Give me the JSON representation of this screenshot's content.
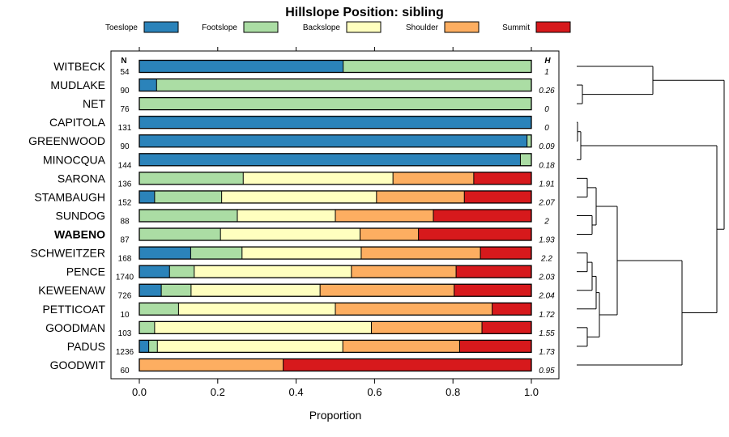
{
  "chart_data": {
    "type": "bar",
    "orientation": "horizontal-stacked",
    "title": "Hillslope Position: sibling",
    "xlabel": "Proportion",
    "ylabel": "",
    "xlim": [
      0,
      1
    ],
    "xticks": [
      "0.0",
      "0.2",
      "0.4",
      "0.6",
      "0.8",
      "1.0"
    ],
    "xtick_values": [
      0,
      0.2,
      0.4,
      0.6,
      0.8,
      1.0
    ],
    "n_header": "N",
    "h_header": "H",
    "legend_position": "top",
    "colors": {
      "Toeslope": "#2b83ba",
      "Footslope": "#abdda4",
      "Backslope": "#ffffbf",
      "Shoulder": "#fdae61",
      "Summit": "#d7191c"
    },
    "series_names": [
      "Toeslope",
      "Footslope",
      "Backslope",
      "Shoulder",
      "Summit"
    ],
    "categories": [
      {
        "name": "WITBECK",
        "n": "54",
        "h": "1",
        "bold": false,
        "values": [
          0.52,
          0.48,
          0,
          0,
          0
        ]
      },
      {
        "name": "MUDLAKE",
        "n": "90",
        "h": "0.26",
        "bold": false,
        "values": [
          0.044,
          0.956,
          0,
          0,
          0
        ]
      },
      {
        "name": "NET",
        "n": "76",
        "h": "0",
        "bold": false,
        "values": [
          0,
          1.0,
          0,
          0,
          0
        ]
      },
      {
        "name": "CAPITOLA",
        "n": "131",
        "h": "0",
        "bold": false,
        "values": [
          1.0,
          0,
          0,
          0,
          0
        ]
      },
      {
        "name": "GREENWOOD",
        "n": "90",
        "h": "0.09",
        "bold": false,
        "values": [
          0.989,
          0.011,
          0,
          0,
          0
        ]
      },
      {
        "name": "MINOCQUA",
        "n": "144",
        "h": "0.18",
        "bold": false,
        "values": [
          0.972,
          0.028,
          0,
          0,
          0
        ]
      },
      {
        "name": "SARONA",
        "n": "136",
        "h": "1.91",
        "bold": false,
        "values": [
          0,
          0.265,
          0.382,
          0.206,
          0.147
        ]
      },
      {
        "name": "STAMBAUGH",
        "n": "152",
        "h": "2.07",
        "bold": false,
        "values": [
          0.039,
          0.171,
          0.395,
          0.224,
          0.171
        ]
      },
      {
        "name": "SUNDOG",
        "n": "88",
        "h": "2",
        "bold": false,
        "values": [
          0,
          0.25,
          0.25,
          0.25,
          0.25
        ]
      },
      {
        "name": "WABENO",
        "n": "87",
        "h": "1.93",
        "bold": true,
        "values": [
          0,
          0.207,
          0.356,
          0.149,
          0.288
        ]
      },
      {
        "name": "SCHWEITZER",
        "n": "168",
        "h": "2.2",
        "bold": false,
        "values": [
          0.131,
          0.131,
          0.304,
          0.304,
          0.13
        ]
      },
      {
        "name": "PENCE",
        "n": "1740",
        "h": "2.03",
        "bold": false,
        "values": [
          0.077,
          0.063,
          0.401,
          0.267,
          0.192
        ]
      },
      {
        "name": "KEWEENAW",
        "n": "726",
        "h": "2.04",
        "bold": false,
        "values": [
          0.056,
          0.076,
          0.329,
          0.342,
          0.197
        ]
      },
      {
        "name": "PETTICOAT",
        "n": "10",
        "h": "1.72",
        "bold": false,
        "values": [
          0,
          0.1,
          0.4,
          0.4,
          0.1
        ]
      },
      {
        "name": "GOODMAN",
        "n": "103",
        "h": "1.55",
        "bold": false,
        "values": [
          0,
          0.039,
          0.553,
          0.282,
          0.126
        ]
      },
      {
        "name": "PADUS",
        "n": "1236",
        "h": "1.73",
        "bold": false,
        "values": [
          0.024,
          0.022,
          0.473,
          0.298,
          0.183
        ]
      },
      {
        "name": "GOODWIT",
        "n": "60",
        "h": "0.95",
        "bold": false,
        "values": [
          0,
          0,
          0,
          0.367,
          0.633
        ]
      }
    ]
  }
}
